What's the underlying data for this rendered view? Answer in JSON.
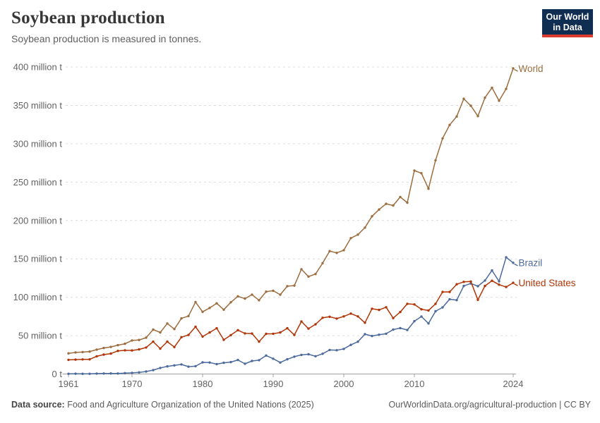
{
  "header": {
    "title": "Soybean production",
    "subtitle": "Soybean production is measured in tonnes.",
    "logo": {
      "line1": "Our World",
      "line2": "in Data"
    }
  },
  "colors": {
    "logo_bg": "#102D52",
    "logo_accent": "#DC3C30",
    "grid": "#DCDCDC",
    "axis": "#A3A3A3",
    "tick_text": "#636363"
  },
  "footer": {
    "source_label": "Data source:",
    "source_text": "Food and Agriculture Organization of the United Nations (2025)",
    "attribution": "OurWorldinData.org/agricultural-production | CC BY"
  },
  "chart_data": {
    "type": "line",
    "title": "Soybean production",
    "unit": "million tonnes",
    "xlabel": "",
    "ylabel": "",
    "xlim": [
      1961,
      2024
    ],
    "ylim": [
      0,
      400
    ],
    "grid": "horizontal-dashed",
    "legend_position": "line-end-labels",
    "xticks": [
      1961,
      1970,
      1980,
      1990,
      2000,
      2010,
      2024
    ],
    "yticks": [
      0,
      50,
      100,
      150,
      200,
      250,
      300,
      350,
      400
    ],
    "ytick_suffix": " million t",
    "ytick_zero_label": "0 t",
    "years": [
      1961,
      1962,
      1963,
      1964,
      1965,
      1966,
      1967,
      1968,
      1969,
      1970,
      1971,
      1972,
      1973,
      1974,
      1975,
      1976,
      1977,
      1978,
      1979,
      1980,
      1981,
      1982,
      1983,
      1984,
      1985,
      1986,
      1987,
      1988,
      1989,
      1990,
      1991,
      1992,
      1993,
      1994,
      1995,
      1996,
      1997,
      1998,
      1999,
      2000,
      2001,
      2002,
      2003,
      2004,
      2005,
      2006,
      2007,
      2008,
      2009,
      2010,
      2011,
      2012,
      2013,
      2014,
      2015,
      2016,
      2017,
      2018,
      2019,
      2020,
      2021,
      2022,
      2023,
      2024
    ],
    "series": [
      {
        "name": "World",
        "color": "#9C6D3E",
        "values": [
          26.9,
          28.1,
          28.6,
          29.2,
          31.8,
          33.9,
          35.3,
          37.6,
          39.4,
          43.7,
          44.4,
          47.3,
          57.9,
          54.1,
          65.9,
          58.5,
          72.5,
          75.5,
          93.8,
          81.0,
          86.1,
          92.1,
          83.8,
          93.4,
          101.2,
          98.2,
          103.4,
          96.1,
          107.3,
          108.5,
          103.3,
          114.4,
          115.2,
          136.5,
          126.9,
          130.2,
          144.4,
          160.1,
          157.8,
          161.3,
          177.0,
          181.6,
          190.7,
          205.5,
          214.3,
          221.7,
          219.5,
          230.6,
          223.2,
          265.0,
          261.6,
          241.4,
          278.4,
          307.0,
          324.5,
          335.5,
          358.6,
          349.5,
          336.0,
          360.0,
          373.0,
          356.0,
          371.4,
          398.2
        ]
      },
      {
        "name": "Brazil",
        "color": "#4C6A9C",
        "values": [
          0.27,
          0.35,
          0.32,
          0.3,
          0.52,
          0.6,
          0.72,
          0.65,
          1.06,
          1.51,
          2.08,
          3.22,
          5.01,
          7.88,
          9.89,
          11.23,
          12.51,
          9.54,
          10.24,
          15.16,
          15.01,
          12.84,
          14.58,
          15.54,
          18.28,
          13.33,
          16.98,
          18.02,
          24.07,
          19.9,
          14.94,
          19.21,
          22.59,
          24.93,
          25.68,
          23.17,
          26.39,
          31.31,
          30.99,
          32.73,
          37.91,
          42.11,
          51.92,
          49.55,
          51.18,
          52.46,
          57.86,
          59.83,
          57.35,
          68.76,
          74.82,
          65.85,
          81.72,
          86.76,
          97.46,
          96.3,
          114.73,
          117.89,
          114.32,
          121.8,
          134.93,
          120.7,
          152.14,
          144.8
        ]
      },
      {
        "name": "United States",
        "color": "#B13507",
        "values": [
          18.47,
          18.72,
          19.03,
          19.08,
          23.01,
          25.27,
          26.58,
          30.13,
          30.84,
          30.68,
          32.01,
          34.58,
          42.12,
          33.1,
          42.14,
          35.07,
          47.95,
          50.86,
          61.53,
          48.77,
          54.13,
          59.61,
          44.51,
          50.65,
          57.13,
          52.87,
          52.74,
          42.15,
          52.35,
          52.42,
          54.07,
          59.61,
          50.92,
          68.44,
          59.17,
          64.78,
          73.18,
          74.6,
          72.22,
          75.06,
          78.67,
          75.01,
          66.78,
          85.02,
          83.51,
          87.0,
          72.86,
          80.75,
          91.47,
          90.66,
          84.29,
          82.79,
          91.39,
          106.88,
          106.95,
          116.93,
          120.07,
          120.51,
          96.67,
          114.75,
          121.53,
          116.38,
          113.34,
          118.84
        ]
      }
    ]
  }
}
